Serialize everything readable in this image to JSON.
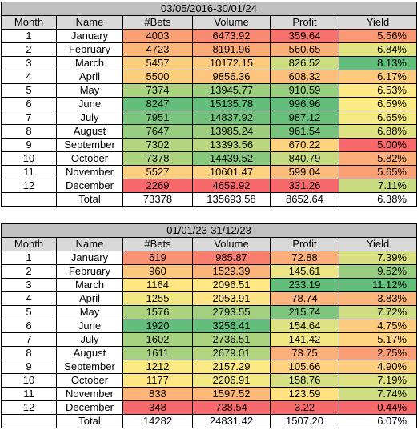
{
  "tables": [
    {
      "title": "03/05/2016-30/01/24",
      "header": [
        "Month",
        "Name",
        "#Bets",
        "Volume",
        "Profit",
        "Yield"
      ],
      "rows": [
        [
          "1",
          "January",
          "4003",
          "6473.92",
          "359.64",
          "5.56%"
        ],
        [
          "2",
          "February",
          "4723",
          "8191.96",
          "560.65",
          "6.84%"
        ],
        [
          "3",
          "March",
          "5457",
          "10172.15",
          "826.52",
          "8.13%"
        ],
        [
          "4",
          "April",
          "5500",
          "9856.36",
          "608.32",
          "6.17%"
        ],
        [
          "5",
          "May",
          "7374",
          "13945.77",
          "910.59",
          "6.53%"
        ],
        [
          "6",
          "June",
          "8247",
          "15135.78",
          "996.96",
          "6.59%"
        ],
        [
          "7",
          "July",
          "7951",
          "14837.92",
          "987.12",
          "6.65%"
        ],
        [
          "8",
          "August",
          "7647",
          "13985.24",
          "961.54",
          "6.88%"
        ],
        [
          "9",
          "September",
          "7302",
          "13393.56",
          "670.22",
          "5.00%"
        ],
        [
          "10",
          "October",
          "7378",
          "14439.52",
          "840.79",
          "5.82%"
        ],
        [
          "11",
          "November",
          "5527",
          "10601.47",
          "599.04",
          "5.65%"
        ],
        [
          "12",
          "December",
          "2269",
          "4659.92",
          "331.26",
          "7.11%"
        ]
      ],
      "total": [
        "Total",
        "73378",
        "135693.58",
        "8652.64",
        "6.38%"
      ]
    },
    {
      "title": "01/01/23-31/12/23",
      "header": [
        "Month",
        "Name",
        "#Bets",
        "Volume",
        "Profit",
        "Yield"
      ],
      "rows": [
        [
          "1",
          "January",
          "619",
          "985.87",
          "72.88",
          "7.39%"
        ],
        [
          "2",
          "February",
          "960",
          "1529.39",
          "145.61",
          "9.52%"
        ],
        [
          "3",
          "March",
          "1164",
          "2096.51",
          "233.19",
          "11.12%"
        ],
        [
          "4",
          "April",
          "1255",
          "2053.91",
          "78.74",
          "3.83%"
        ],
        [
          "5",
          "May",
          "1576",
          "2793.55",
          "215.74",
          "7.72%"
        ],
        [
          "6",
          "June",
          "1920",
          "3256.41",
          "154.64",
          "4.75%"
        ],
        [
          "7",
          "July",
          "1602",
          "2736.51",
          "141.42",
          "5.17%"
        ],
        [
          "8",
          "August",
          "1611",
          "2679.01",
          "73.75",
          "2.75%"
        ],
        [
          "9",
          "September",
          "1212",
          "2157.29",
          "105.66",
          "4.90%"
        ],
        [
          "10",
          "October",
          "1177",
          "2206.91",
          "158.76",
          "7.19%"
        ],
        [
          "11",
          "November",
          "838",
          "1597.52",
          "123.59",
          "7.74%"
        ],
        [
          "12",
          "December",
          "348",
          "738.54",
          "3.22",
          "0.44%"
        ]
      ],
      "total": [
        "Total",
        "14282",
        "24831.42",
        "1507.20",
        "6.07%"
      ]
    }
  ]
}
